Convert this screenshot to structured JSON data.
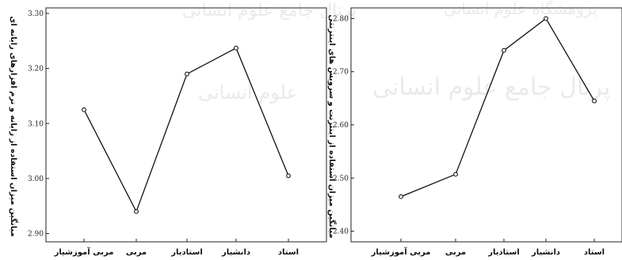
{
  "chart_data": [
    {
      "type": "line",
      "title": "",
      "xlabel": "",
      "ylabel": "میانگین میزان استفاده از رایانه و نرم افزارهای رایانه ای",
      "categories": [
        "مربی آموزشیار",
        "مربی",
        "استادیار",
        "دانشیار",
        "استاد"
      ],
      "series": [
        {
          "values": [
            3.125,
            2.94,
            3.19,
            3.237,
            3.005
          ]
        }
      ],
      "ylim": [
        2.885,
        3.31
      ],
      "yticks": [
        2.9,
        3.0,
        3.1,
        3.2,
        3.3
      ],
      "ytick_labels": [
        "2.90",
        "3.00",
        "3.10",
        "3.20",
        "3.30"
      ],
      "grid": false
    },
    {
      "type": "line",
      "title": "",
      "xlabel": "",
      "ylabel": "میانگین میزان استفاده از اینترنت و سرویس های اینترنتی",
      "categories": [
        "مربی آموزشیار",
        "مربی",
        "استادیار",
        "دانشیار",
        "استاد"
      ],
      "series": [
        {
          "values": [
            2.465,
            2.507,
            2.74,
            2.8,
            2.645
          ]
        }
      ],
      "ylim": [
        2.38,
        2.82
      ],
      "yticks": [
        2.4,
        2.5,
        2.6,
        2.7,
        2.8
      ],
      "ytick_labels": [
        "2.40",
        "2.50",
        "2.60",
        "2.70",
        "2.80"
      ],
      "grid": false
    }
  ]
}
